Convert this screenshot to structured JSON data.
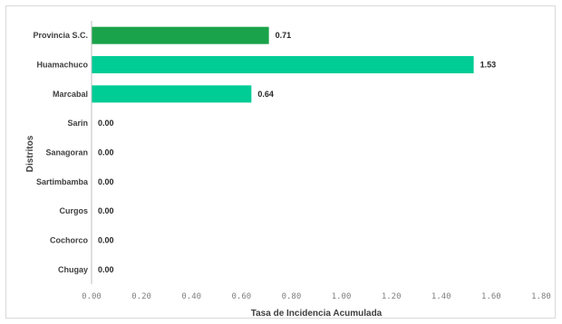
{
  "chart_data": {
    "type": "bar",
    "orientation": "horizontal",
    "categories": [
      "Provincia S.C.",
      "Huamachuco",
      "Marcabal",
      "Sarin",
      "Sanagoran",
      "Sartimbamba",
      "Curgos",
      "Cochorco",
      "Chugay"
    ],
    "values": [
      0.71,
      1.53,
      0.64,
      0.0,
      0.0,
      0.0,
      0.0,
      0.0,
      0.0
    ],
    "value_labels": [
      "0.71",
      "1.53",
      "0.64",
      "0.00",
      "0.00",
      "0.00",
      "0.00",
      "0.00",
      "0.00"
    ],
    "xlabel": "Tasa de Incidencia Acumulada",
    "ylabel": "Distritos",
    "xlim": [
      0,
      1.8
    ],
    "x_ticks": [
      "0.00",
      "0.20",
      "0.40",
      "0.60",
      "0.80",
      "1.00",
      "1.20",
      "1.40",
      "1.60",
      "1.80"
    ],
    "grid": false,
    "colors": {
      "highlight": "#1aa34a",
      "bar": "#00cc96",
      "axis": "#bfbfbf"
    },
    "highlight_index": 0
  }
}
